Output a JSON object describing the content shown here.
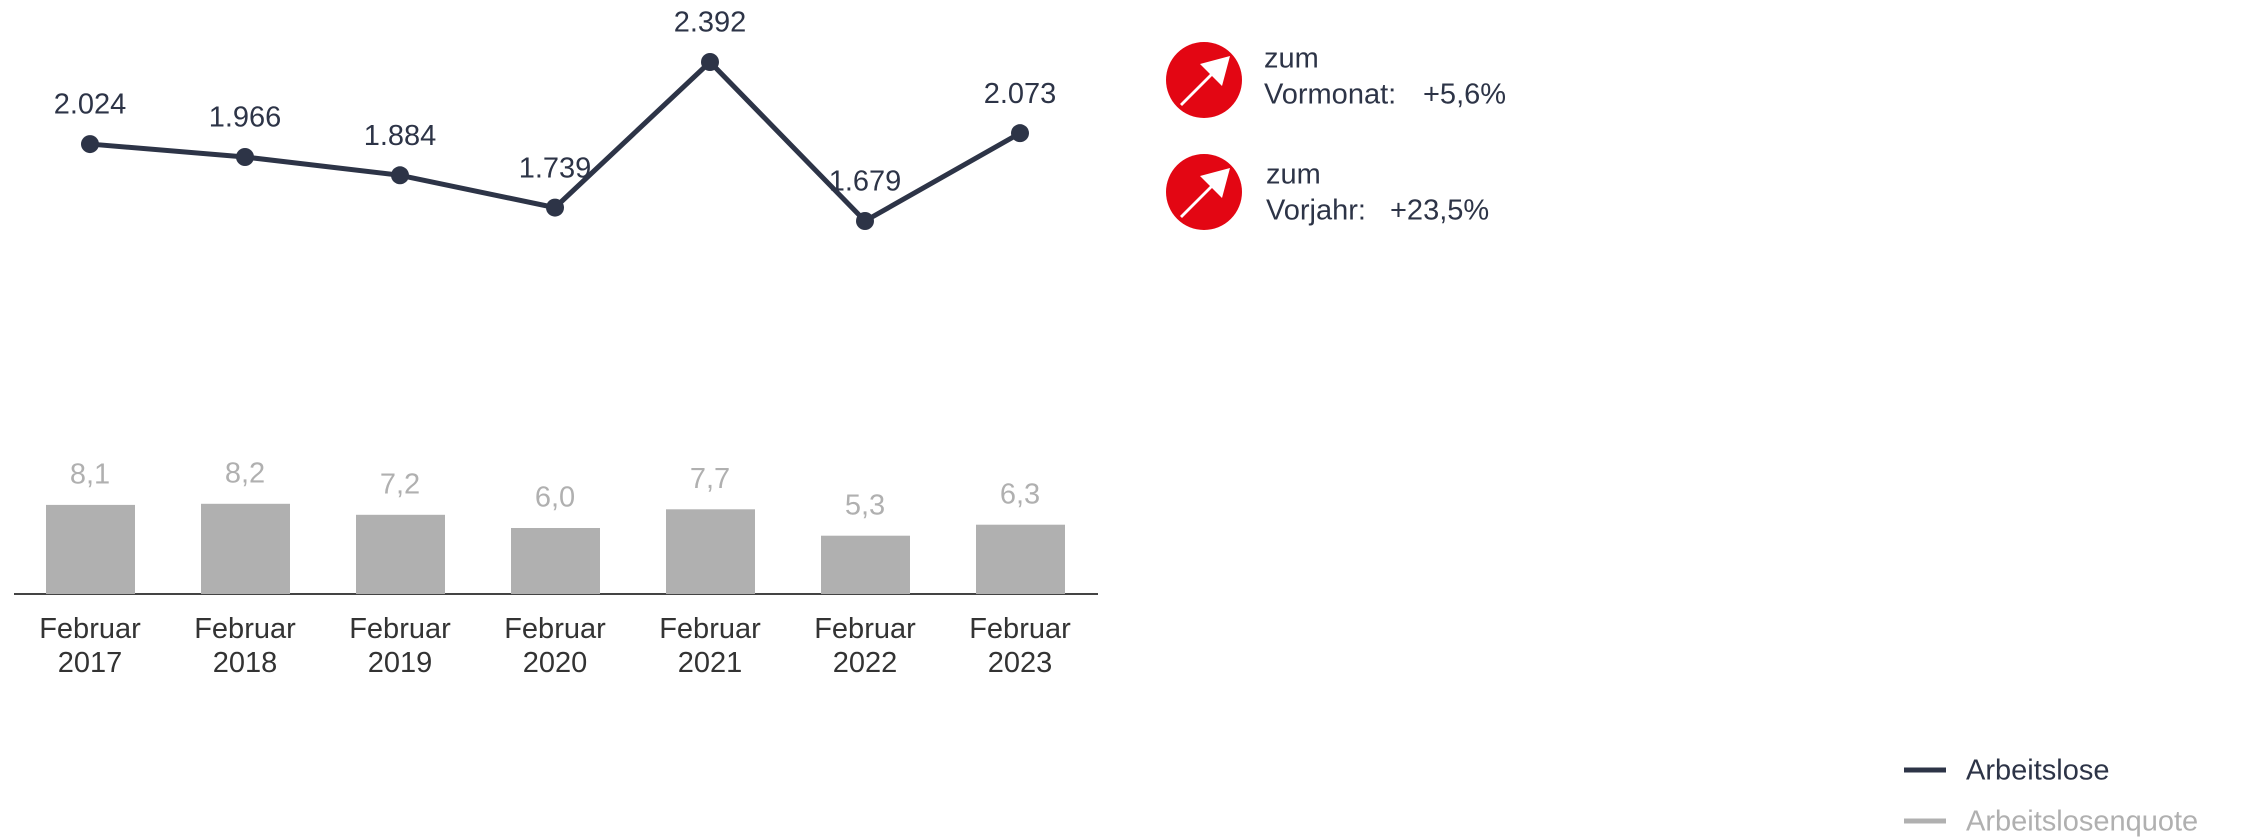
{
  "chart_data": {
    "type": "line+bar",
    "categories": [
      "Februar 2017",
      "Februar 2018",
      "Februar 2019",
      "Februar 2020",
      "Februar 2021",
      "Februar 2022",
      "Februar 2023"
    ],
    "series": [
      {
        "name": "Arbeitslose",
        "type": "line",
        "color": "#2d3447",
        "values": [
          2024,
          1966,
          1884,
          1739,
          2392,
          1679,
          2073
        ],
        "value_labels": [
          "2.024",
          "1.966",
          "1.884",
          "1.739",
          "2.392",
          "1.679",
          "2.073"
        ]
      },
      {
        "name": "Arbeitslosenquote",
        "type": "bar",
        "color": "#b0b0b0",
        "values": [
          8.1,
          8.2,
          7.2,
          6.0,
          7.7,
          5.3,
          6.3
        ],
        "value_labels": [
          "8,1",
          "8,2",
          "7,2",
          "6,0",
          "7,7",
          "5,3",
          "6,3"
        ]
      }
    ],
    "legend": "bottom-right"
  },
  "indicators": [
    {
      "line1": "zum",
      "line2": "Vormonat:",
      "value": "+5,6%"
    },
    {
      "line1": "zum",
      "line2": "Vorjahr:",
      "value": "+23,5%"
    }
  ]
}
